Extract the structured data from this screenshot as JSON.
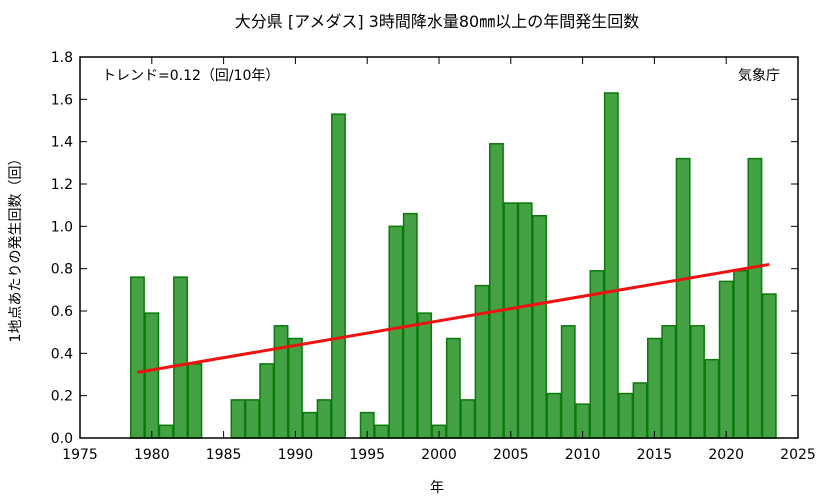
{
  "chart_data": {
    "type": "bar",
    "title": "大分県 [アメダス] 3時間降水量80㎜以上の年間発生回数",
    "xlabel": "年",
    "ylabel": "1地点あたりの発生回数（回）",
    "trend_label": "トレンド=0.12（回/10年）",
    "source_label": "気象庁",
    "xlim": [
      1975,
      2025
    ],
    "ylim": [
      0,
      1.8
    ],
    "x_ticks": [
      1975,
      1980,
      1985,
      1990,
      1995,
      2000,
      2005,
      2010,
      2015,
      2020,
      2025
    ],
    "y_ticks": [
      "0.0",
      "0.2",
      "0.4",
      "0.6",
      "0.8",
      "1.0",
      "1.2",
      "1.4",
      "1.6",
      "1.8"
    ],
    "x": [
      1979,
      1980,
      1981,
      1982,
      1983,
      1984,
      1985,
      1986,
      1987,
      1988,
      1989,
      1990,
      1991,
      1992,
      1993,
      1994,
      1995,
      1996,
      1997,
      1998,
      1999,
      2000,
      2001,
      2002,
      2003,
      2004,
      2005,
      2006,
      2007,
      2008,
      2009,
      2010,
      2011,
      2012,
      2013,
      2014,
      2015,
      2016,
      2017,
      2018,
      2019,
      2020,
      2021,
      2022,
      2023
    ],
    "values": [
      0.76,
      0.59,
      0.06,
      0.76,
      0.35,
      0,
      0,
      0.18,
      0.18,
      0.35,
      0.53,
      0.47,
      0.12,
      0.18,
      1.53,
      0,
      0.12,
      0.06,
      1.0,
      1.06,
      0.59,
      0.06,
      0.47,
      0.18,
      0.72,
      1.39,
      1.11,
      1.11,
      1.05,
      0.21,
      0.53,
      0.16,
      0.79,
      1.63,
      0.21,
      0.26,
      0.47,
      0.53,
      1.32,
      0.53,
      0.37,
      0.74,
      0.79,
      1.32,
      0.68
    ],
    "trend": {
      "x": [
        1979,
        2023
      ],
      "y": [
        0.31,
        0.82
      ]
    },
    "colors": {
      "bar_fill": "#44a244",
      "bar_stroke": "#0a7a0a",
      "trend": "#ee1111"
    },
    "grid": false
  }
}
